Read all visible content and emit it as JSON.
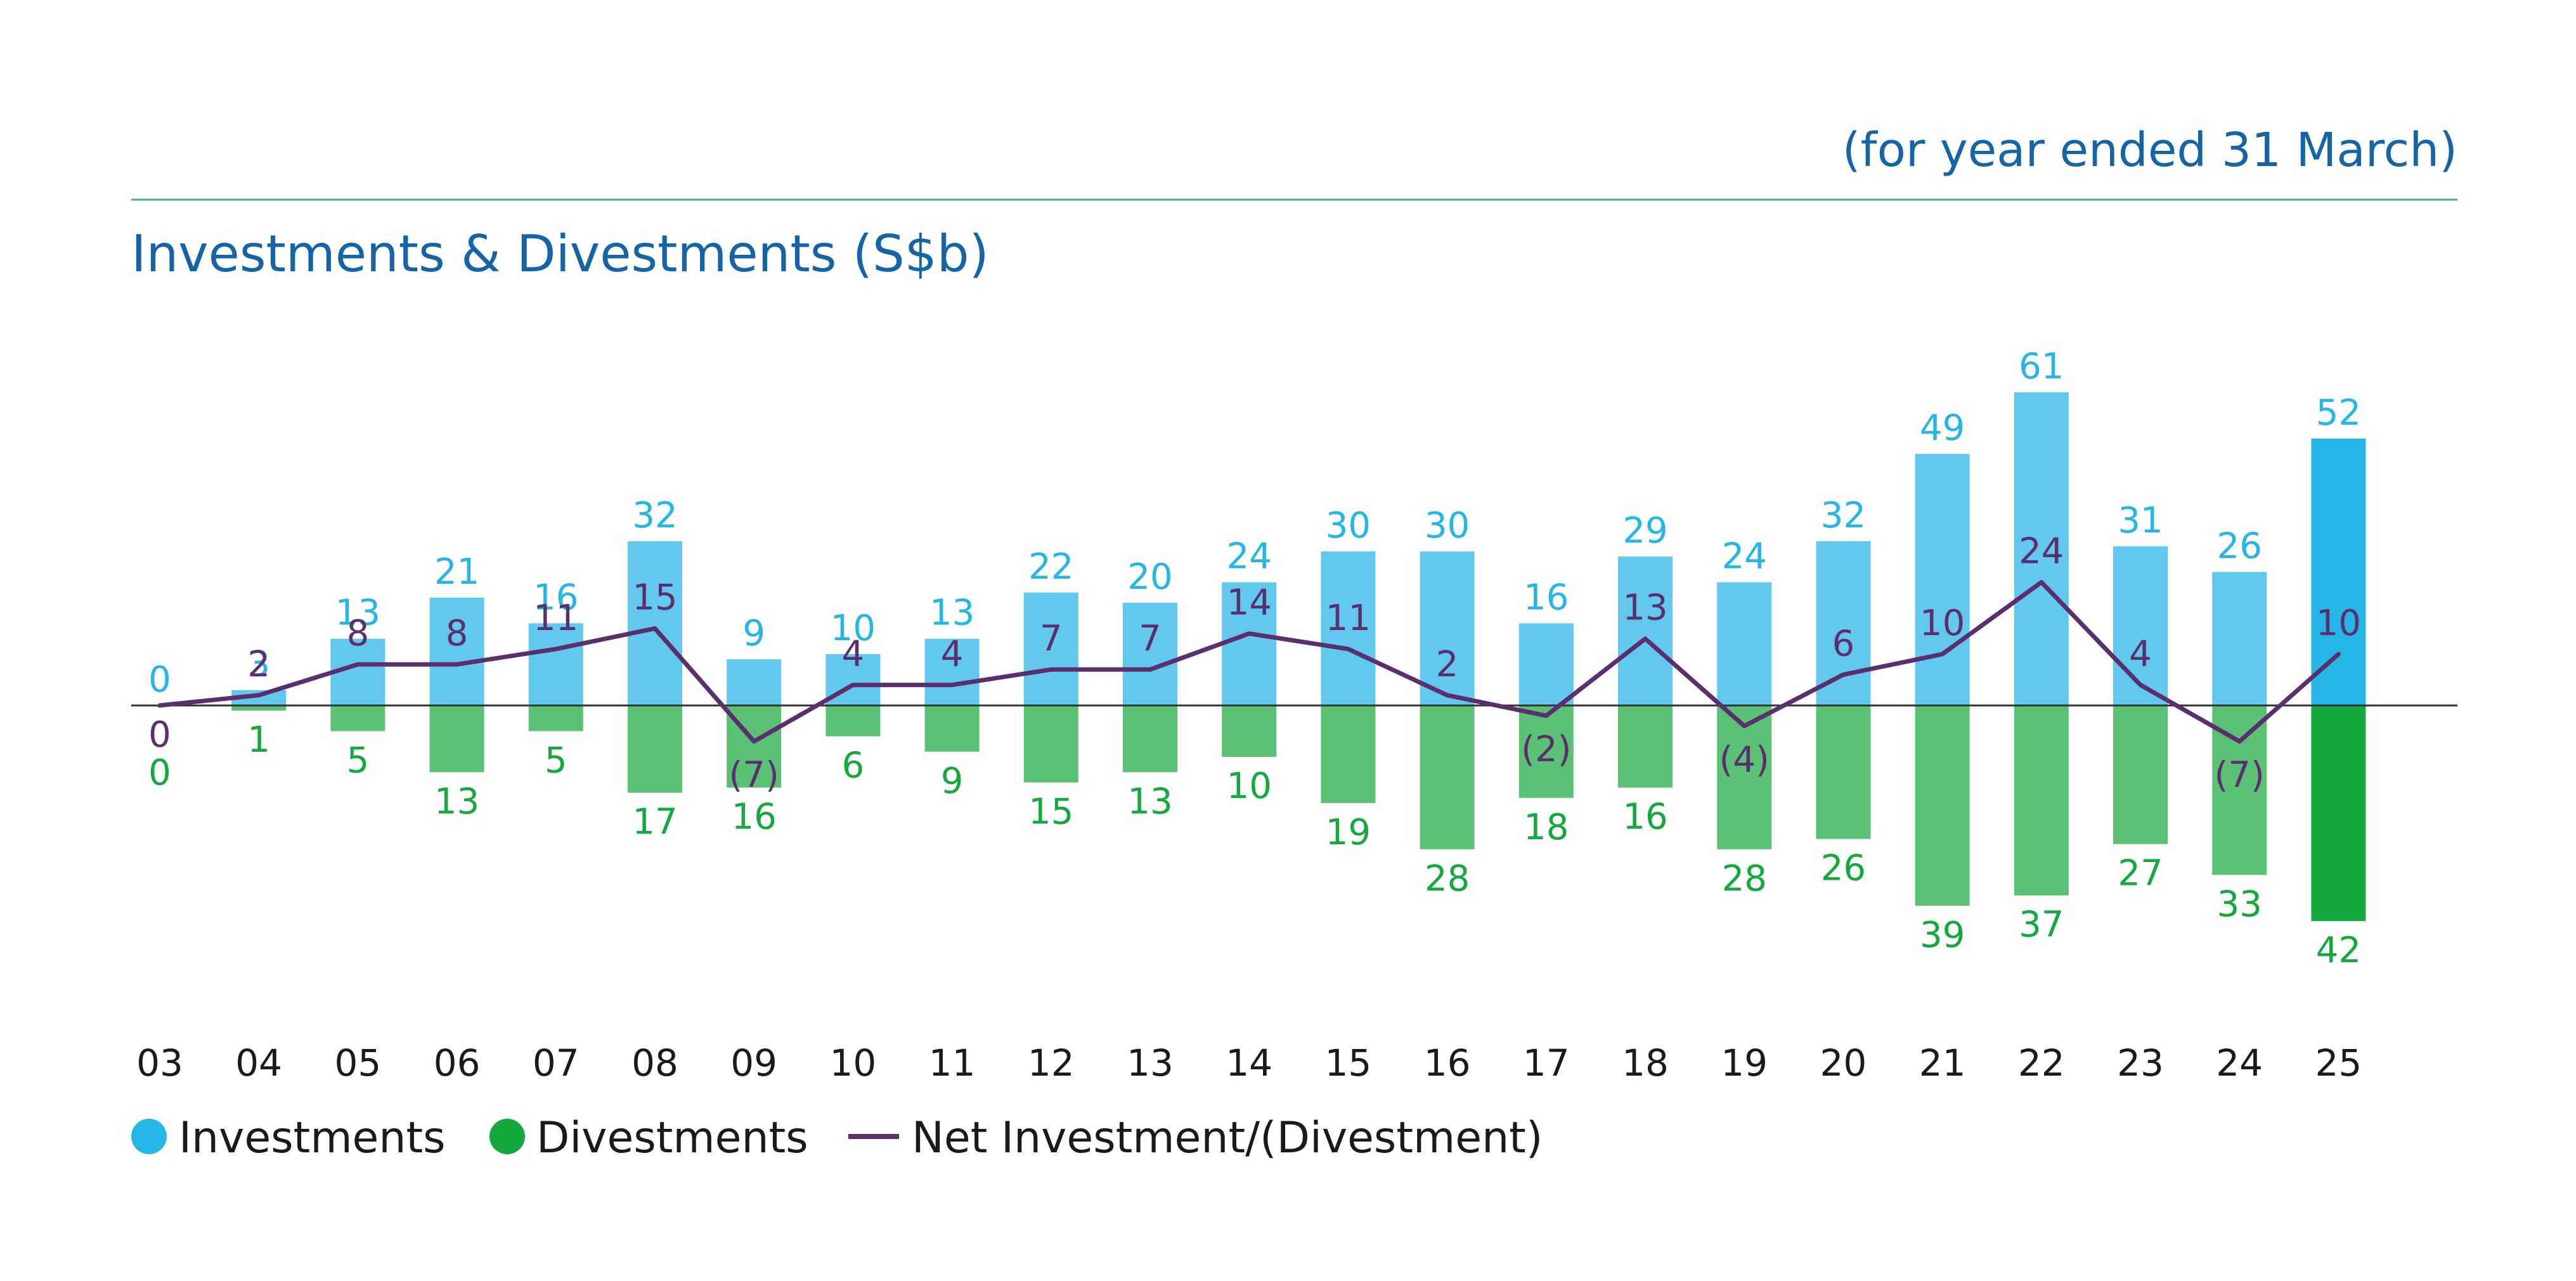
{
  "header": {
    "period_note": "(for year ended 31 March)"
  },
  "colors": {
    "investments": "#62c8ee",
    "investments_latest": "#25b6e6",
    "divestments": "#5bc175",
    "divestments_latest": "#14a83d",
    "net": "#5a2f6e",
    "title": "#1565a6",
    "rule": "#4aaab4",
    "axis": "#333333"
  },
  "chart_data": {
    "type": "bar",
    "title": "Investments & Divestments (S$b)",
    "categories": [
      "03",
      "04",
      "05",
      "06",
      "07",
      "08",
      "09",
      "10",
      "11",
      "12",
      "13",
      "14",
      "15",
      "16",
      "17",
      "18",
      "19",
      "20",
      "21",
      "22",
      "23",
      "24",
      "25"
    ],
    "series": [
      {
        "name": "Investments",
        "type": "bar",
        "values": [
          0,
          3,
          13,
          21,
          16,
          32,
          9,
          10,
          13,
          22,
          20,
          24,
          30,
          30,
          16,
          29,
          24,
          32,
          49,
          61,
          31,
          26,
          52
        ]
      },
      {
        "name": "Divestments",
        "type": "bar",
        "values": [
          0,
          1,
          5,
          13,
          5,
          17,
          16,
          6,
          9,
          15,
          13,
          10,
          19,
          28,
          18,
          16,
          28,
          26,
          39,
          37,
          27,
          33,
          42
        ]
      },
      {
        "name": "Net Investment/(Divestment)",
        "type": "line",
        "values": [
          0,
          2,
          8,
          8,
          11,
          15,
          -7,
          4,
          4,
          7,
          7,
          14,
          11,
          2,
          -2,
          13,
          -4,
          6,
          10,
          24,
          4,
          -7,
          10
        ],
        "labels": [
          "0",
          "2",
          "8",
          "8",
          "11",
          "15",
          "(7)",
          "4",
          "4",
          "7",
          "7",
          "14",
          "11",
          "2",
          "(2)",
          "13",
          "(4)",
          "6",
          "10",
          "24",
          "4",
          "(7)",
          "10"
        ]
      }
    ],
    "legend": {
      "position": "bottom-left"
    },
    "grid": false
  }
}
